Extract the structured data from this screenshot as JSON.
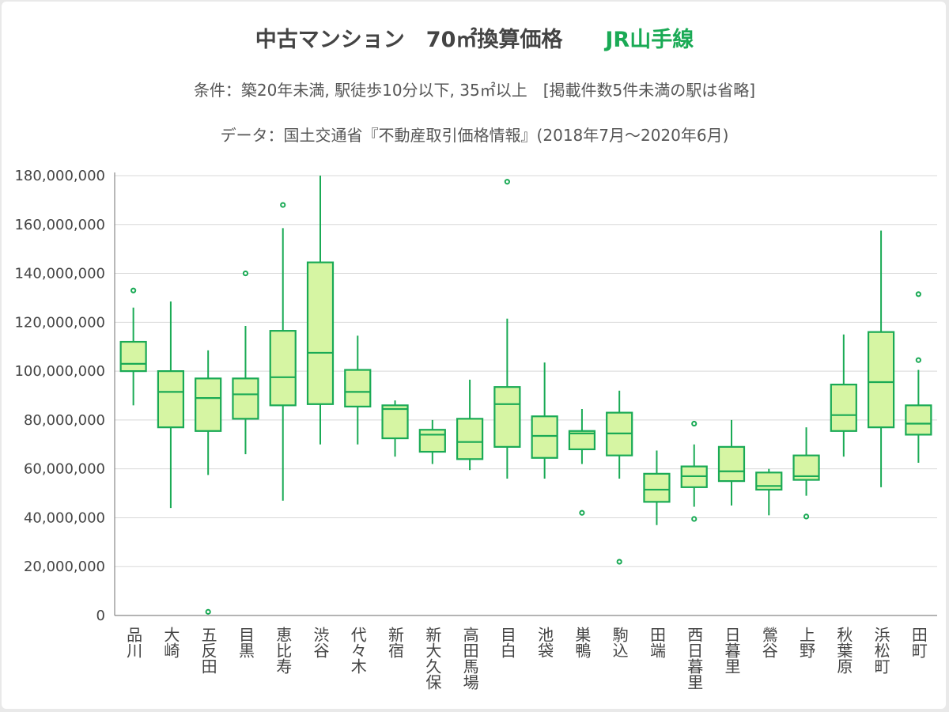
{
  "chart_data": {
    "type": "boxplot",
    "title": "中古マンション　70㎡換算価格",
    "title_highlight": "JR山手線",
    "subtitle": "条件：築20年未満, 駅徒歩10分以下, 35㎡以上　[掲載件数5件未満の駅は省略]",
    "source": "データ：国土交通省『不動産取引価格情報』(2018年7月～2020年6月)",
    "ylim": [
      0,
      180000000
    ],
    "yticks": [
      "180,000,000",
      "160,000,000",
      "140,000,000",
      "120,000,000",
      "100,000,000",
      "80,000,000",
      "60,000,000",
      "40,000,000",
      "20,000,000",
      "0"
    ],
    "ytick_values": [
      180000000,
      160000000,
      140000000,
      120000000,
      100000000,
      80000000,
      60000000,
      40000000,
      20000000,
      0
    ],
    "grid": true,
    "colors": {
      "box_fill": "#d6f5a3",
      "stroke": "#1aaa55",
      "grid": "#d8d8d8",
      "axis": "#888888"
    },
    "stations": [
      {
        "name": "品川",
        "min": 86000000,
        "q1": 100000000,
        "median": 103000000,
        "q3": 112000000,
        "max": 126000000,
        "outliers": [
          133000000
        ]
      },
      {
        "name": "大崎",
        "min": 44000000,
        "q1": 77000000,
        "median": 91500000,
        "q3": 100000000,
        "max": 128500000,
        "outliers": []
      },
      {
        "name": "五反田",
        "min": 57500000,
        "q1": 75500000,
        "median": 89000000,
        "q3": 97000000,
        "max": 108500000,
        "outliers": [
          1500000
        ]
      },
      {
        "name": "目黒",
        "min": 66000000,
        "q1": 80500000,
        "median": 90500000,
        "q3": 97000000,
        "max": 118500000,
        "outliers": [
          140000000
        ]
      },
      {
        "name": "恵比寿",
        "min": 47000000,
        "q1": 86000000,
        "median": 97500000,
        "q3": 116500000,
        "max": 158500000,
        "outliers": [
          168000000
        ]
      },
      {
        "name": "渋谷",
        "min": 70000000,
        "q1": 86500000,
        "median": 107500000,
        "q3": 144500000,
        "max": 180000000,
        "outliers": []
      },
      {
        "name": "代々木",
        "min": 70000000,
        "q1": 85500000,
        "median": 91500000,
        "q3": 100500000,
        "max": 114500000,
        "outliers": []
      },
      {
        "name": "新宿",
        "min": 65000000,
        "q1": 72500000,
        "median": 84500000,
        "q3": 86000000,
        "max": 88000000,
        "outliers": []
      },
      {
        "name": "新大久保",
        "min": 62000000,
        "q1": 67000000,
        "median": 74000000,
        "q3": 76000000,
        "max": 80000000,
        "outliers": []
      },
      {
        "name": "高田馬場",
        "min": 59500000,
        "q1": 64000000,
        "median": 71000000,
        "q3": 80500000,
        "max": 96500000,
        "outliers": []
      },
      {
        "name": "目白",
        "min": 56000000,
        "q1": 69000000,
        "median": 86500000,
        "q3": 93500000,
        "max": 121500000,
        "outliers": [
          177500000
        ]
      },
      {
        "name": "池袋",
        "min": 56000000,
        "q1": 64500000,
        "median": 73500000,
        "q3": 81500000,
        "max": 103500000,
        "outliers": []
      },
      {
        "name": "巣鴨",
        "min": 62000000,
        "q1": 68000000,
        "median": 74500000,
        "q3": 75500000,
        "max": 84500000,
        "outliers": [
          42000000
        ]
      },
      {
        "name": "駒込",
        "min": 56000000,
        "q1": 65500000,
        "median": 74500000,
        "q3": 83000000,
        "max": 92000000,
        "outliers": [
          22000000
        ]
      },
      {
        "name": "田端",
        "min": 37000000,
        "q1": 46500000,
        "median": 51500000,
        "q3": 58000000,
        "max": 67500000,
        "outliers": []
      },
      {
        "name": "西日暮里",
        "min": 44500000,
        "q1": 52500000,
        "median": 57000000,
        "q3": 61000000,
        "max": 70000000,
        "outliers": [
          78500000,
          39500000
        ]
      },
      {
        "name": "日暮里",
        "min": 45000000,
        "q1": 55000000,
        "median": 59000000,
        "q3": 69000000,
        "max": 80000000,
        "outliers": []
      },
      {
        "name": "鶯谷",
        "min": 41000000,
        "q1": 51500000,
        "median": 53000000,
        "q3": 58500000,
        "max": 60000000,
        "outliers": []
      },
      {
        "name": "上野",
        "min": 49000000,
        "q1": 55500000,
        "median": 57000000,
        "q3": 65500000,
        "max": 77000000,
        "outliers": [
          40500000
        ]
      },
      {
        "name": "秋葉原",
        "min": 65000000,
        "q1": 75500000,
        "median": 82000000,
        "q3": 94500000,
        "max": 115000000,
        "outliers": []
      },
      {
        "name": "浜松町",
        "min": 52500000,
        "q1": 77000000,
        "median": 95500000,
        "q3": 116000000,
        "max": 157500000,
        "outliers": []
      },
      {
        "name": "田町",
        "min": 62500000,
        "q1": 74000000,
        "median": 78500000,
        "q3": 86000000,
        "max": 100500000,
        "outliers": [
          131500000,
          104500000
        ]
      }
    ]
  }
}
